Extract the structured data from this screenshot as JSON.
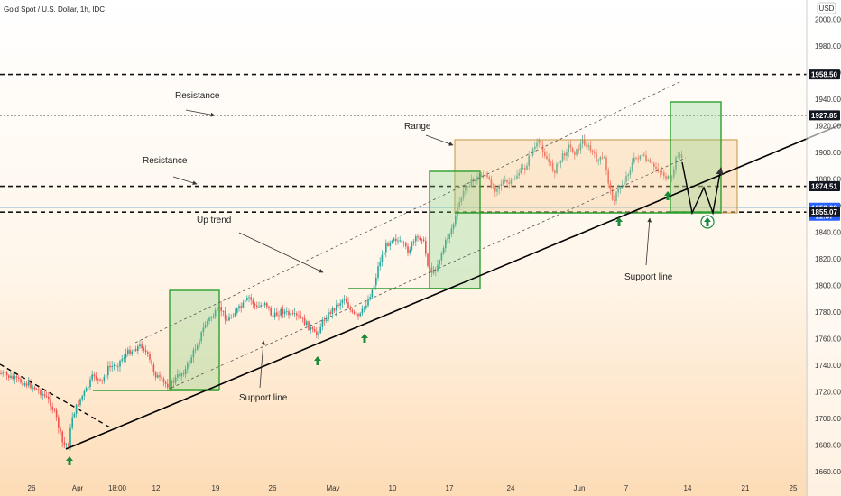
{
  "header": {
    "title": "Gold Spot / U.S. Dollar, 1h, IDC",
    "currency": "USD"
  },
  "chart_data": {
    "type": "candlestick",
    "title": "Gold Spot / U.S. Dollar, 1h, IDC",
    "ylim": [
      1655,
      2025
    ],
    "y_ticks": [
      1660,
      1680,
      1700,
      1720,
      1740,
      1760,
      1780,
      1800,
      1820,
      1840,
      1860,
      1880,
      1900,
      1920,
      1940,
      1960,
      1980,
      2000
    ],
    "x_tick_labels": [
      "26",
      "Apr",
      "18:00",
      "12",
      "19",
      "26",
      "May",
      "10",
      "17",
      "24",
      "Jun",
      "7",
      "14",
      "21",
      "25"
    ],
    "price_badges": [
      {
        "value": "1958.50",
        "color": "#131722"
      },
      {
        "value": "1927.85",
        "color": "#131722"
      },
      {
        "value": "1874.51",
        "color": "#131722"
      },
      {
        "value": "1858.08",
        "sub": "11:37",
        "color": "#2962ff"
      },
      {
        "value": "1855.07",
        "color": "#131722"
      }
    ],
    "horizontal_levels": [
      1958.5,
      1927.85,
      1874.51,
      1855.07
    ],
    "annotations": [
      {
        "text": "Resistance"
      },
      {
        "text": "Resistance"
      },
      {
        "text": "Range"
      },
      {
        "text": "Up trend"
      },
      {
        "text": "Support line"
      },
      {
        "text": "Support line"
      }
    ],
    "colors": {
      "up": "#26a69a",
      "down": "#ef5350",
      "box_green": "#2e9e2e",
      "box_range": "#c29540",
      "arrow": "#1b8a3a"
    }
  }
}
